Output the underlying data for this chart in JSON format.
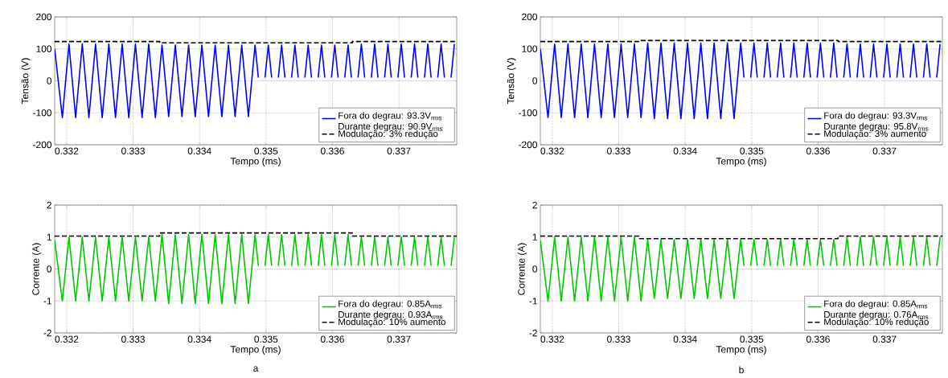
{
  "chart_data": [
    {
      "type": "line",
      "xlabel": "Tempo (ms)",
      "ylabel": "Tensão (V)",
      "xlim": [
        0.33182,
        0.33787
      ],
      "ylim": [
        -200,
        200
      ],
      "xticks": [
        0.332,
        0.333,
        0.334,
        0.335,
        0.336,
        0.337
      ],
      "yticks": [
        -200,
        -100,
        0,
        100,
        200
      ],
      "grid": true,
      "legend": "bottom right",
      "x": [
        0.33182,
        0.331935,
        0.332035,
        0.332135,
        0.332235,
        0.332335,
        0.332435,
        0.332535,
        0.332635,
        0.332735,
        0.332835,
        0.332935,
        0.333035,
        0.333135,
        0.333235,
        0.333335,
        0.333435,
        0.333535,
        0.333635,
        0.333735,
        0.333835,
        0.333935,
        0.334035,
        0.334135,
        0.334235,
        0.334335,
        0.334435,
        0.334535,
        0.334635,
        0.334735,
        0.334835,
        0.334885,
        0.334935,
        0.334985,
        0.335035,
        0.335085,
        0.335135,
        0.335185,
        0.335235,
        0.335285,
        0.335335,
        0.335385,
        0.335435,
        0.335485,
        0.335535,
        0.335585,
        0.335635,
        0.335685,
        0.335735,
        0.335785,
        0.335835,
        0.335885,
        0.335935,
        0.335985,
        0.336035,
        0.336085,
        0.336135,
        0.336185,
        0.336235,
        0.336285,
        0.336335,
        0.336385,
        0.336435,
        0.336485,
        0.336535,
        0.336585,
        0.336635,
        0.336685,
        0.336735,
        0.336785,
        0.336835,
        0.336885,
        0.336935,
        0.336985,
        0.337035,
        0.337085,
        0.337135,
        0.337185,
        0.337235,
        0.337285,
        0.337335,
        0.337385,
        0.337435,
        0.337485,
        0.337535,
        0.337585,
        0.337635,
        0.337685,
        0.337735,
        0.337785,
        0.337835
      ],
      "series": [
        {
          "name": "Fora do degrau: 93.3V$_{rms}$ Durante degrau: 90.9V$_{rms}$",
          "color": "#0000ff",
          "line_style": "solid",
          "values": [
            100,
            -115,
            115,
            -115,
            115,
            -115,
            115,
            -115,
            115,
            -115,
            115,
            -115,
            115,
            -115,
            115,
            -115,
            112,
            -112,
            112,
            -112,
            112,
            -112,
            112,
            -112,
            112,
            -112,
            112,
            -112,
            112,
            -112,
            112,
            10,
            null,
            10,
            112,
            10,
            null,
            10,
            112,
            10,
            null,
            10,
            112,
            10,
            null,
            10,
            112,
            10,
            null,
            10,
            112,
            10,
            null,
            10,
            112,
            10,
            null,
            10,
            112,
            10,
            null,
            10,
            115,
            10,
            null,
            10,
            115,
            10,
            null,
            10,
            115,
            10,
            null,
            10,
            115,
            10,
            null,
            10,
            115,
            10,
            null,
            10,
            115,
            10,
            null,
            10,
            115,
            10,
            null,
            10,
            115
          ]
        },
        {
          "name": "Modulação: 3% redução",
          "color": "#000000",
          "line_style": "dashed",
          "x": [
            0.33182,
            0.3334,
            0.3334,
            0.3363,
            0.3363,
            0.33787
          ],
          "values": [
            123,
            123,
            119,
            119,
            123,
            123
          ]
        }
      ]
    },
    {
      "type": "line",
      "xlabel": "Tempo (ms)",
      "ylabel": "Tensão (V)",
      "xlim": [
        0.33182,
        0.33787
      ],
      "ylim": [
        -200,
        200
      ],
      "xticks": [
        0.332,
        0.333,
        0.334,
        0.335,
        0.336,
        0.337
      ],
      "yticks": [
        -200,
        -100,
        0,
        100,
        200
      ],
      "grid": true,
      "legend": "bottom right",
      "x": [
        0.33182,
        0.331935,
        0.332035,
        0.332135,
        0.332235,
        0.332335,
        0.332435,
        0.332535,
        0.332635,
        0.332735,
        0.332835,
        0.332935,
        0.333035,
        0.333135,
        0.333235,
        0.333335,
        0.333435,
        0.333535,
        0.333635,
        0.333735,
        0.333835,
        0.333935,
        0.334035,
        0.334135,
        0.334235,
        0.334335,
        0.334435,
        0.334535,
        0.334635,
        0.334735,
        0.334835,
        0.334885,
        0.334935,
        0.334985,
        0.335035,
        0.335085,
        0.335135,
        0.335185,
        0.335235,
        0.335285,
        0.335335,
        0.335385,
        0.335435,
        0.335485,
        0.335535,
        0.335585,
        0.335635,
        0.335685,
        0.335735,
        0.335785,
        0.335835,
        0.335885,
        0.335935,
        0.335985,
        0.336035,
        0.336085,
        0.336135,
        0.336185,
        0.336235,
        0.336285,
        0.336335,
        0.336385,
        0.336435,
        0.336485,
        0.336535,
        0.336585,
        0.336635,
        0.336685,
        0.336735,
        0.336785,
        0.336835,
        0.336885,
        0.336935,
        0.336985,
        0.337035,
        0.337085,
        0.337135,
        0.337185,
        0.337235,
        0.337285,
        0.337335,
        0.337385,
        0.337435,
        0.337485,
        0.337535,
        0.337585,
        0.337635,
        0.337685,
        0.337735,
        0.337785,
        0.337835
      ],
      "series": [
        {
          "name": "Fora do degrau: 93.3V$_{rms}$ Durante degrau: 95.8V$_{rms}$",
          "color": "#0000ff",
          "line_style": "solid",
          "values": [
            100,
            -115,
            115,
            -115,
            115,
            -115,
            115,
            -115,
            115,
            -115,
            115,
            -115,
            115,
            -115,
            115,
            -115,
            118,
            -118,
            118,
            -118,
            118,
            -118,
            118,
            -118,
            118,
            -118,
            118,
            -118,
            118,
            -118,
            118,
            10,
            null,
            10,
            118,
            10,
            null,
            10,
            118,
            10,
            null,
            10,
            118,
            10,
            null,
            10,
            118,
            10,
            null,
            10,
            118,
            10,
            null,
            10,
            118,
            10,
            null,
            10,
            118,
            10,
            null,
            10,
            115,
            10,
            null,
            10,
            115,
            10,
            null,
            10,
            115,
            10,
            null,
            10,
            115,
            10,
            null,
            10,
            115,
            10,
            null,
            10,
            115,
            10,
            null,
            10,
            115,
            10,
            null,
            10,
            115
          ]
        },
        {
          "name": "Modulação: 3% aumento",
          "color": "#000000",
          "line_style": "dashed",
          "x": [
            0.33182,
            0.3333,
            0.3333,
            0.3363,
            0.3363,
            0.33787
          ],
          "values": [
            123,
            123,
            126,
            126,
            123,
            123
          ]
        }
      ]
    },
    {
      "type": "line",
      "xlabel": "Tempo (ms)",
      "ylabel": "Corrente (A)",
      "xlim": [
        0.33182,
        0.33787
      ],
      "ylim": [
        -2,
        2
      ],
      "xticks": [
        0.332,
        0.333,
        0.334,
        0.335,
        0.336,
        0.337
      ],
      "yticks": [
        -2,
        -1,
        0,
        1,
        2
      ],
      "grid": true,
      "legend": "bottom right",
      "annotations": [
        "a"
      ],
      "x": [
        0.33182,
        0.331935,
        0.332035,
        0.332135,
        0.332235,
        0.332335,
        0.332435,
        0.332535,
        0.332635,
        0.332735,
        0.332835,
        0.332935,
        0.333035,
        0.333135,
        0.333235,
        0.333335,
        0.333435,
        0.333535,
        0.333635,
        0.333735,
        0.333835,
        0.333935,
        0.334035,
        0.334135,
        0.334235,
        0.334335,
        0.334435,
        0.334535,
        0.334635,
        0.334735,
        0.334835,
        0.334885,
        0.334935,
        0.334985,
        0.335035,
        0.335085,
        0.335135,
        0.335185,
        0.335235,
        0.335285,
        0.335335,
        0.335385,
        0.335435,
        0.335485,
        0.335535,
        0.335585,
        0.335635,
        0.335685,
        0.335735,
        0.335785,
        0.335835,
        0.335885,
        0.335935,
        0.335985,
        0.336035,
        0.336085,
        0.336135,
        0.336185,
        0.336235,
        0.336285,
        0.336335,
        0.336385,
        0.336435,
        0.336485,
        0.336535,
        0.336585,
        0.336635,
        0.336685,
        0.336735,
        0.336785,
        0.336835,
        0.336885,
        0.336935,
        0.336985,
        0.337035,
        0.337085,
        0.337135,
        0.337185,
        0.337235,
        0.337285,
        0.337335,
        0.337385,
        0.337435,
        0.337485,
        0.337535,
        0.337585,
        0.337635,
        0.337685,
        0.337735,
        0.337785,
        0.337835
      ],
      "series": [
        {
          "name": "Fora do degrau: 0.85A$_{rms}$ Durante degrau: 0.93A$_{rms}$",
          "color": "#00c800",
          "line_style": "solid",
          "values": [
            0.9,
            -1,
            1,
            -1,
            1,
            -1,
            1,
            -1,
            1,
            -1,
            1,
            -1,
            1,
            -1,
            1,
            -1,
            1.08,
            -1.08,
            1.08,
            -1.08,
            1.08,
            -1.08,
            1.08,
            -1.08,
            1.08,
            -1.08,
            1.08,
            -1.08,
            1.08,
            -1.08,
            1.08,
            0.1,
            null,
            0.1,
            1.08,
            0.1,
            null,
            0.1,
            1.08,
            0.1,
            null,
            0.1,
            1.08,
            0.1,
            null,
            0.1,
            1.08,
            0.1,
            null,
            0.1,
            1.08,
            0.1,
            null,
            0.1,
            1.08,
            0.1,
            null,
            0.1,
            1.08,
            0.1,
            null,
            0.1,
            1,
            0.1,
            null,
            0.1,
            1,
            0.1,
            null,
            0.1,
            1,
            0.1,
            null,
            0.1,
            1,
            0.1,
            null,
            0.1,
            1,
            0.1,
            null,
            0.1,
            1,
            0.1,
            null,
            0.1,
            1,
            0.1,
            null,
            0.1,
            1
          ]
        },
        {
          "name": "Modulação: 10% aumento",
          "color": "#000000",
          "line_style": "dashed",
          "x": [
            0.33182,
            0.3334,
            0.3334,
            0.3363,
            0.3363,
            0.33787
          ],
          "values": [
            1.03,
            1.03,
            1.13,
            1.13,
            1.03,
            1.03
          ]
        }
      ]
    },
    {
      "type": "line",
      "xlabel": "Tempo (ms)",
      "ylabel": "Corrente (A)",
      "xlim": [
        0.33182,
        0.33787
      ],
      "ylim": [
        -2,
        2
      ],
      "xticks": [
        0.332,
        0.333,
        0.334,
        0.335,
        0.336,
        0.337
      ],
      "yticks": [
        -2,
        -1,
        0,
        1,
        2
      ],
      "grid": true,
      "legend": "bottom right",
      "annotations": [
        "b"
      ],
      "x": [
        0.33182,
        0.331935,
        0.332035,
        0.332135,
        0.332235,
        0.332335,
        0.332435,
        0.332535,
        0.332635,
        0.332735,
        0.332835,
        0.332935,
        0.333035,
        0.333135,
        0.333235,
        0.333335,
        0.333435,
        0.333535,
        0.333635,
        0.333735,
        0.333835,
        0.333935,
        0.334035,
        0.334135,
        0.334235,
        0.334335,
        0.334435,
        0.334535,
        0.334635,
        0.334735,
        0.334835,
        0.334885,
        0.334935,
        0.334985,
        0.335035,
        0.335085,
        0.335135,
        0.335185,
        0.335235,
        0.335285,
        0.335335,
        0.335385,
        0.335435,
        0.335485,
        0.335535,
        0.335585,
        0.335635,
        0.335685,
        0.335735,
        0.335785,
        0.335835,
        0.335885,
        0.335935,
        0.335985,
        0.336035,
        0.336085,
        0.336135,
        0.336185,
        0.336235,
        0.336285,
        0.336335,
        0.336385,
        0.336435,
        0.336485,
        0.336535,
        0.336585,
        0.336635,
        0.336685,
        0.336735,
        0.336785,
        0.336835,
        0.336885,
        0.336935,
        0.336985,
        0.337035,
        0.337085,
        0.337135,
        0.337185,
        0.337235,
        0.337285,
        0.337335,
        0.337385,
        0.337435,
        0.337485,
        0.337535,
        0.337585,
        0.337635,
        0.337685,
        0.337735,
        0.337785,
        0.337835
      ],
      "series": [
        {
          "name": "Fora do degrau: 0.85A$_{rms}$ Durante degrau: 0.76A$_{rms}$",
          "color": "#00c800",
          "line_style": "solid",
          "values": [
            0.9,
            -1,
            1,
            -1,
            1,
            -1,
            1,
            -1,
            1,
            -1,
            1,
            -1,
            1,
            -1,
            1,
            -1,
            0.92,
            -0.92,
            0.92,
            -0.92,
            0.92,
            -0.92,
            0.92,
            -0.92,
            0.92,
            -0.92,
            0.92,
            -0.92,
            0.92,
            -0.92,
            0.92,
            0.1,
            null,
            0.1,
            0.92,
            0.1,
            null,
            0.1,
            0.92,
            0.1,
            null,
            0.1,
            0.92,
            0.1,
            null,
            0.1,
            0.92,
            0.1,
            null,
            0.1,
            0.92,
            0.1,
            null,
            0.1,
            0.92,
            0.1,
            null,
            0.1,
            0.92,
            0.1,
            null,
            0.1,
            1,
            0.1,
            null,
            0.1,
            1,
            0.1,
            null,
            0.1,
            1,
            0.1,
            null,
            0.1,
            1,
            0.1,
            null,
            0.1,
            1,
            0.1,
            null,
            0.1,
            1,
            0.1,
            null,
            0.1,
            1,
            0.1,
            null,
            0.1,
            1
          ]
        },
        {
          "name": "Modulação: 10% redução",
          "color": "#000000",
          "line_style": "dashed",
          "x": [
            0.33182,
            0.3333,
            0.3333,
            0.3363,
            0.3363,
            0.33787
          ],
          "values": [
            1.03,
            1.03,
            0.95,
            0.95,
            1.03,
            1.03
          ]
        }
      ]
    }
  ]
}
